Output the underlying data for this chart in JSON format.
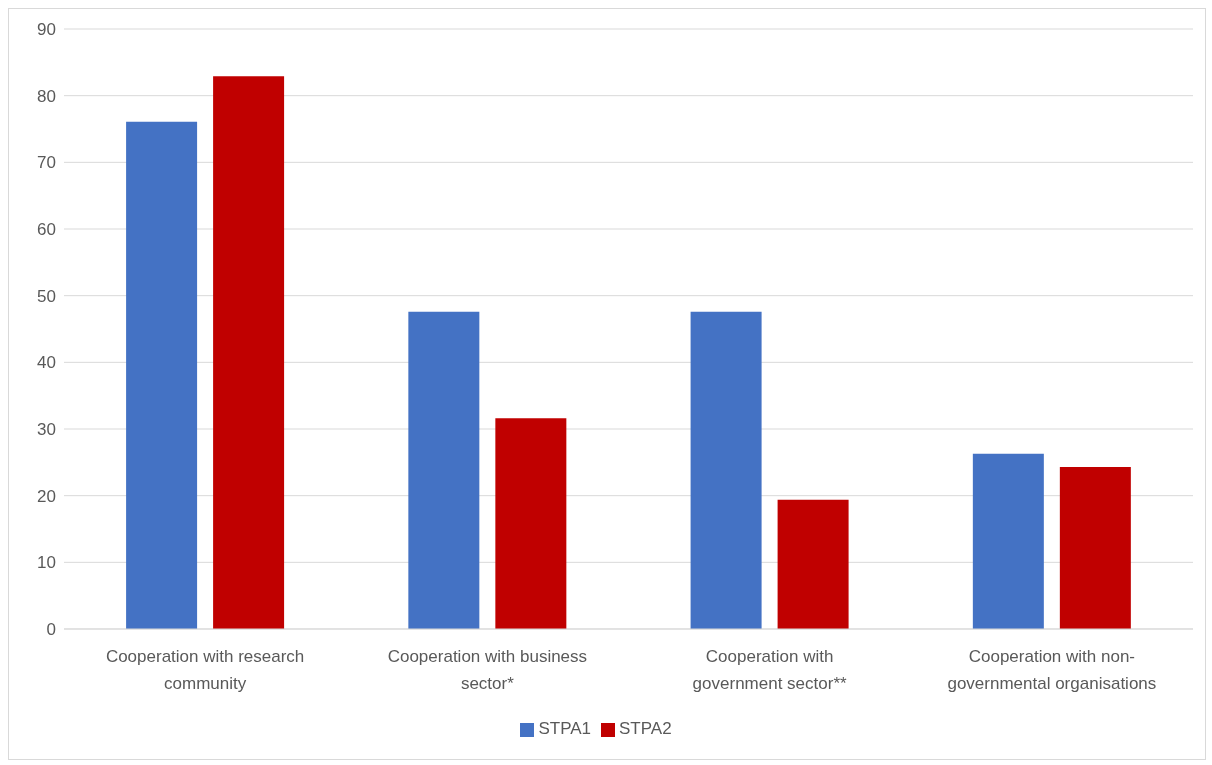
{
  "chart_data": {
    "type": "bar",
    "categories": [
      "Cooperation with research community",
      "Cooperation with business sector*",
      "Cooperation with government sector**",
      "Cooperation with non-governmental organisations"
    ],
    "series": [
      {
        "name": "STPA1",
        "color": "#4472c4",
        "values": [
          76.1,
          47.6,
          47.6,
          26.3
        ]
      },
      {
        "name": "STPA2",
        "color": "#c00000",
        "values": [
          82.9,
          31.6,
          19.4,
          24.3
        ]
      }
    ],
    "ylim": [
      0,
      90
    ],
    "yticks": [
      0,
      10,
      20,
      30,
      40,
      50,
      60,
      70,
      80,
      90
    ],
    "grid": "y",
    "legend": "bottom"
  }
}
